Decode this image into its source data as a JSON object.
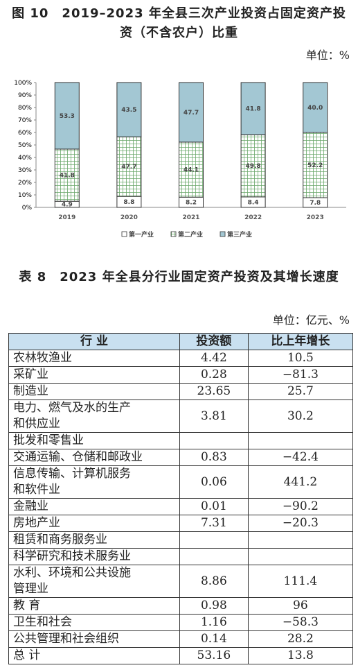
{
  "chart_data": {
    "type": "stacked_bar",
    "title": "图 10　2019–2023 年全县三次产业投资占固定资产投资（不含农户）比重",
    "unit": "单位：%",
    "categories": [
      "2019",
      "2020",
      "2021",
      "2022",
      "2023"
    ],
    "series": [
      {
        "name": "第一产业",
        "color": "#ffffff",
        "values": [
          4.9,
          8.8,
          8.2,
          8.4,
          7.8
        ]
      },
      {
        "name": "第二产业",
        "color": "#6aa86a",
        "values": [
          41.8,
          47.7,
          44.1,
          49.8,
          52.2
        ]
      },
      {
        "name": "第三产业",
        "color": "#a3c7d3",
        "values": [
          53.3,
          43.5,
          47.7,
          41.8,
          40.0
        ],
        "value_labels": [
          "53.3",
          "43.5",
          "47.7",
          "41.8",
          "40.0"
        ]
      }
    ],
    "ylim": [
      0,
      100
    ],
    "yticks": [
      {
        "value": 0,
        "label": "0%"
      },
      {
        "value": 10,
        "label": "10%"
      },
      {
        "value": 20,
        "label": "20%"
      },
      {
        "value": 30,
        "label": "30%"
      },
      {
        "value": 40,
        "label": "40%"
      },
      {
        "value": 50,
        "label": "50%"
      },
      {
        "value": 60,
        "label": "60%"
      },
      {
        "value": 70,
        "label": "70%"
      },
      {
        "value": 80,
        "label": "80%"
      },
      {
        "value": 90,
        "label": "90%"
      },
      {
        "value": 100,
        "label": "100%"
      }
    ],
    "legend": "bottom"
  },
  "table": {
    "title": "表 8　2023 年全县分行业固定资产投资及其增长速度",
    "unit": "单位：亿元、%",
    "header": [
      "行 业",
      "投资额",
      "比上年增长"
    ],
    "rows": [
      [
        "农林牧渔业",
        "4.42",
        "10.5"
      ],
      [
        "采矿业",
        "0.28",
        "−81.3"
      ],
      [
        "制造业",
        "23.65",
        "25.7"
      ],
      [
        [
          "电力、燃气及水的生产",
          "和供应业"
        ],
        "3.81",
        "30.2"
      ],
      [
        "批发和零售业",
        null,
        null
      ],
      [
        "交通运输、仓储和邮政业",
        "0.83",
        "−42.4"
      ],
      [
        [
          "信息传输、计算机服务",
          "和软件业"
        ],
        "0.06",
        "441.2"
      ],
      [
        "金融业",
        "0.01",
        "−90.2"
      ],
      [
        "房地产业",
        "7.31",
        "−20.3"
      ],
      [
        "租赁和商务服务业",
        null,
        null
      ],
      [
        "科学研究和技术服务业",
        null,
        null
      ],
      [
        [
          "水利、环境和公共设施",
          "管理业"
        ],
        "8.86",
        "111.4"
      ],
      [
        "教 育",
        "0.98",
        "96"
      ],
      [
        "卫生和社会",
        "1.16",
        "−58.3"
      ],
      [
        "公共管理和社会组织",
        "0.14",
        "28.2"
      ],
      [
        "总 计",
        "53.16",
        "13.8"
      ]
    ]
  }
}
